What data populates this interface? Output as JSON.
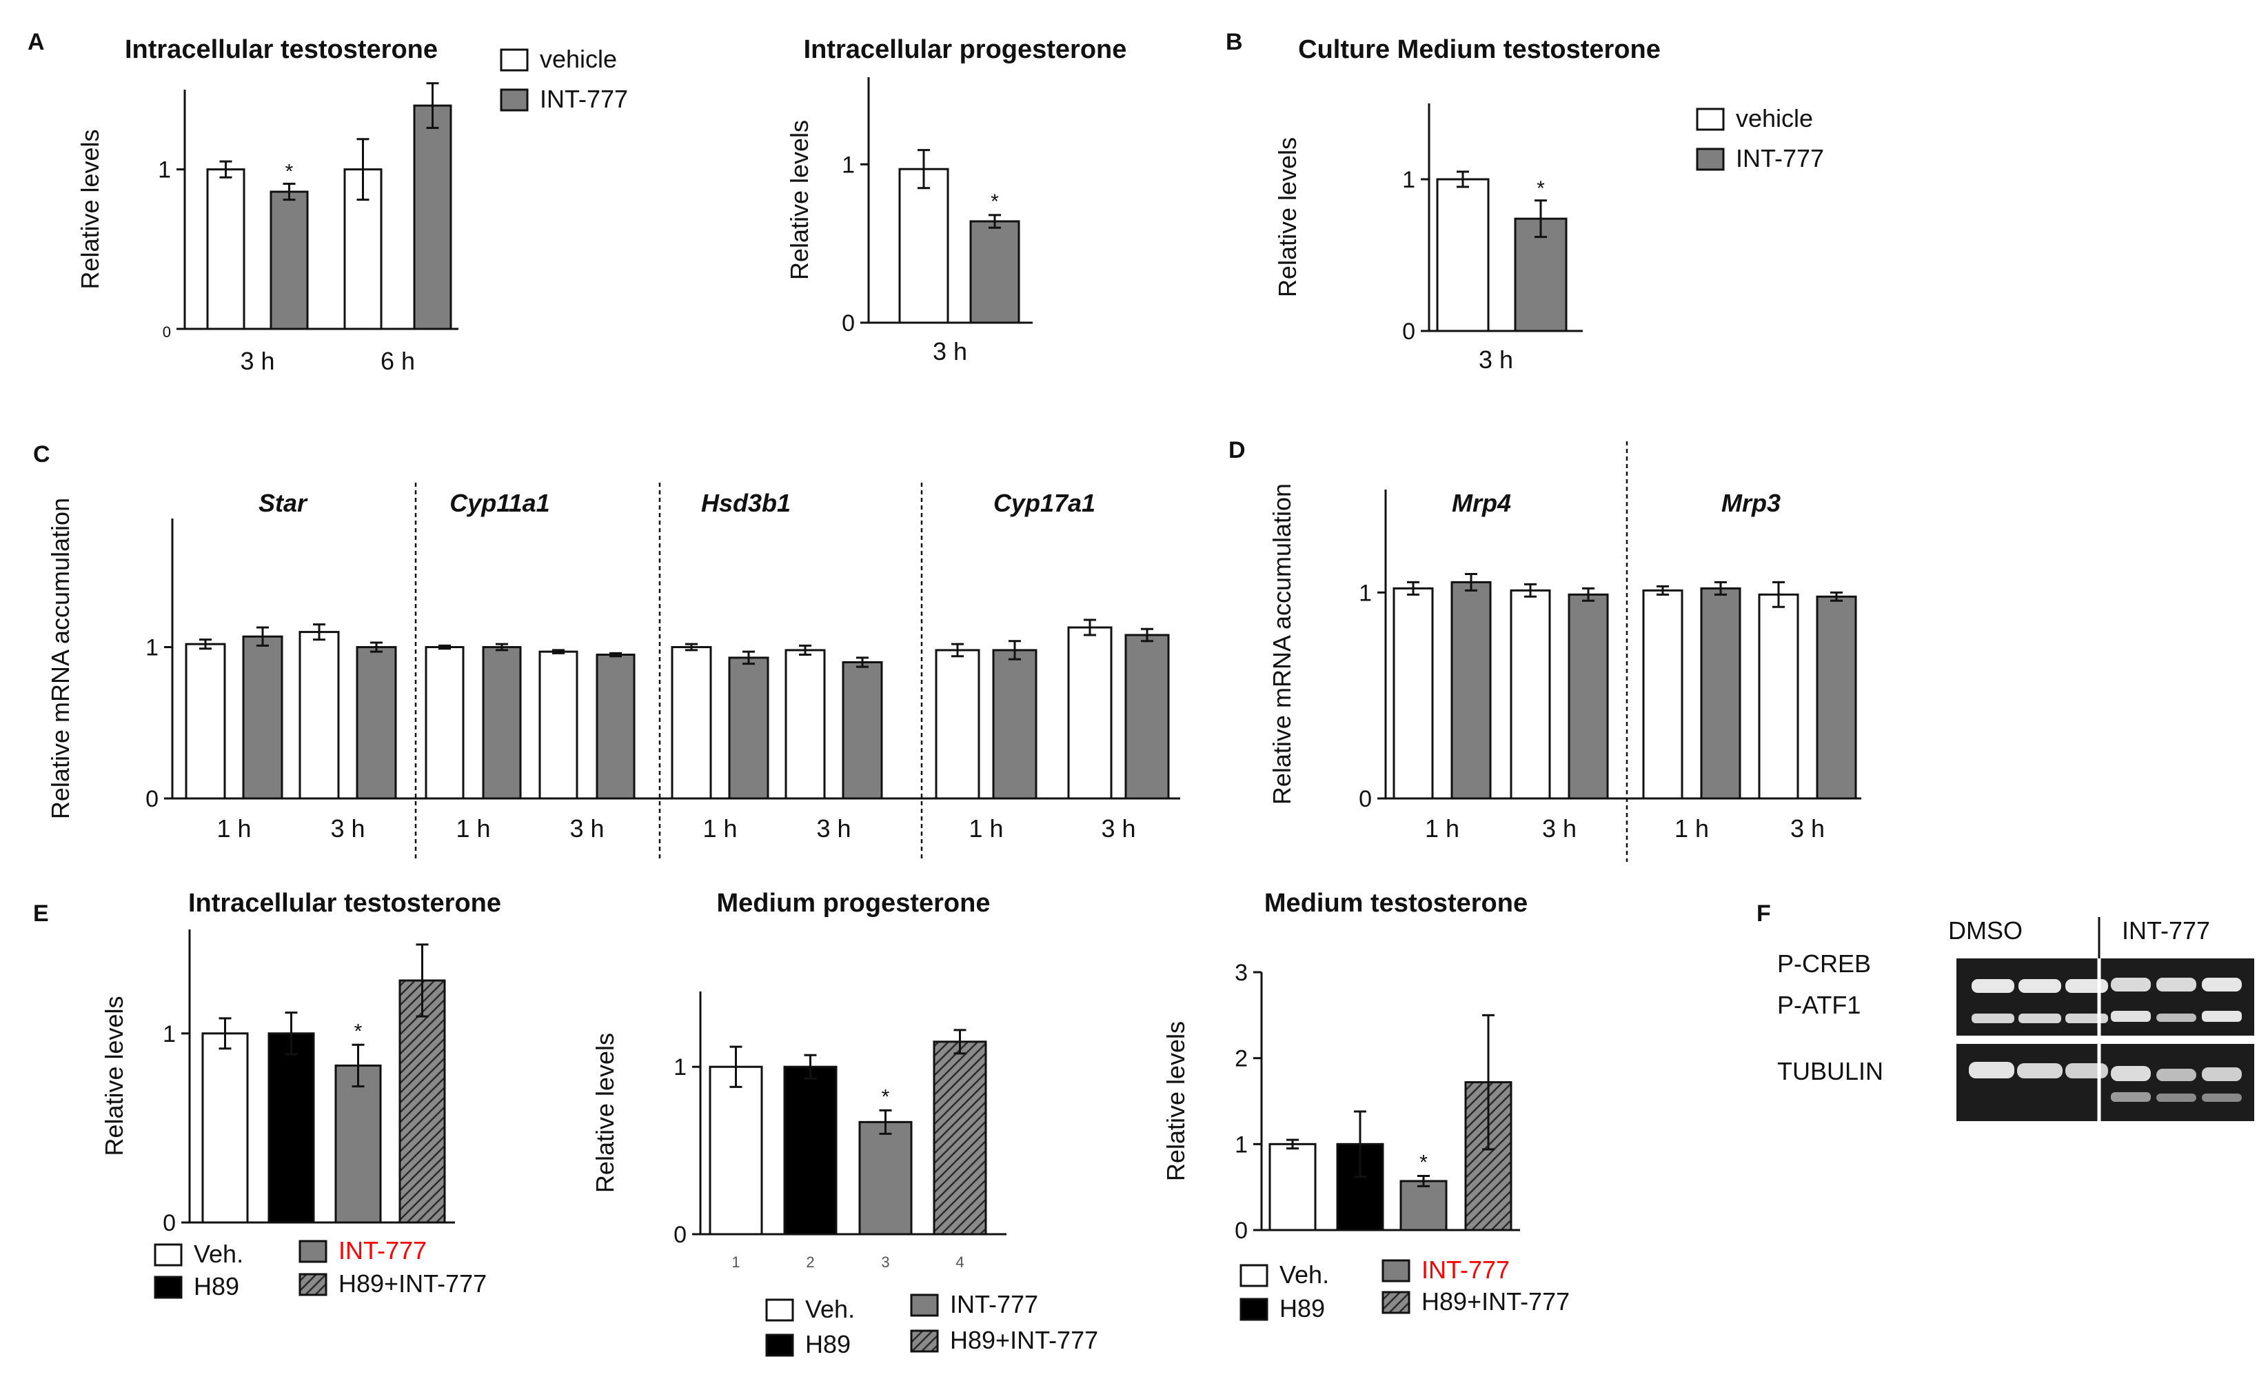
{
  "colors": {
    "vehicle": "#ffffff",
    "int777": "#7f7f7f",
    "h89": "#000000",
    "h89_int777": "#555555",
    "axis": "#111111",
    "red_label": "#ff0000"
  },
  "chart_data": [
    {
      "id": "A1",
      "panel": "A",
      "type": "bar",
      "title": "Intracellular testosterone",
      "ylabel": "Relative levels",
      "ylim": [
        0,
        1.5
      ],
      "yticks": [
        "0",
        "1"
      ],
      "groups": [
        "3 h",
        "6 h"
      ],
      "series": [
        {
          "name": "vehicle",
          "values": [
            1.0,
            1.0
          ],
          "errors": [
            0.05,
            0.19
          ]
        },
        {
          "name": "INT-777",
          "values": [
            0.86,
            1.4
          ],
          "errors": [
            0.05,
            0.14
          ]
        }
      ],
      "significance": [
        "*",
        ""
      ],
      "legend": [
        "vehicle",
        "INT-777"
      ]
    },
    {
      "id": "A2",
      "panel": "A",
      "type": "bar",
      "title": "Intracellular progesterone",
      "ylabel": "Relative levels",
      "ylim": [
        0,
        1.55
      ],
      "yticks": [
        "0",
        "1"
      ],
      "groups": [
        "3 h"
      ],
      "series": [
        {
          "name": "vehicle",
          "values": [
            0.97
          ],
          "errors": [
            0.12
          ]
        },
        {
          "name": "INT-777",
          "values": [
            0.64
          ],
          "errors": [
            0.04
          ]
        }
      ],
      "significance": [
        "*"
      ]
    },
    {
      "id": "B",
      "panel": "B",
      "type": "bar",
      "title": "Culture Medium testosterone",
      "ylabel": "Relative levels",
      "ylim": [
        0,
        1.5
      ],
      "yticks": [
        "0",
        "1"
      ],
      "groups": [
        "3 h"
      ],
      "series": [
        {
          "name": "vehicle",
          "values": [
            1.0
          ],
          "errors": [
            0.05
          ]
        },
        {
          "name": "INT-777",
          "values": [
            0.74
          ],
          "errors": [
            0.12
          ]
        }
      ],
      "significance": [
        "*"
      ],
      "legend": [
        "vehicle",
        "INT-777"
      ]
    },
    {
      "id": "C",
      "panel": "C",
      "type": "bar",
      "ylabel": "Relative mRNA accumulation",
      "ylim": [
        0,
        1.85
      ],
      "yticks": [
        "0",
        "1"
      ],
      "genes": [
        "Star",
        "Cyp11a1",
        "Hsd3b1",
        "Cyp17a1"
      ],
      "groups": [
        "1 h",
        "3 h"
      ],
      "values": [
        [
          [
            1.02,
            1.07
          ],
          [
            1.1,
            1.0
          ]
        ],
        [
          [
            1.0,
            1.0
          ],
          [
            0.97,
            0.95
          ]
        ],
        [
          [
            1.0,
            0.93
          ],
          [
            0.98,
            0.9
          ]
        ],
        [
          [
            0.98,
            0.98
          ],
          [
            1.13,
            1.08
          ]
        ]
      ],
      "errors": [
        [
          [
            0.03,
            0.06
          ],
          [
            0.05,
            0.03
          ]
        ],
        [
          [
            0.01,
            0.02
          ],
          [
            0.01,
            0.01
          ]
        ],
        [
          [
            0.02,
            0.04
          ],
          [
            0.03,
            0.03
          ]
        ],
        [
          [
            0.04,
            0.06
          ],
          [
            0.05,
            0.04
          ]
        ]
      ],
      "series_order": [
        "vehicle",
        "INT-777"
      ]
    },
    {
      "id": "D",
      "panel": "D",
      "type": "bar",
      "ylabel": "Relative mRNA accumulation",
      "ylim": [
        0,
        1.5
      ],
      "yticks": [
        "0",
        "1"
      ],
      "genes": [
        "Mrp4",
        "Mrp3"
      ],
      "groups": [
        "1 h",
        "3 h"
      ],
      "values": [
        [
          [
            1.02,
            1.05
          ],
          [
            1.01,
            0.99
          ]
        ],
        [
          [
            1.01,
            1.02
          ],
          [
            0.99,
            0.98
          ]
        ]
      ],
      "errors": [
        [
          [
            0.03,
            0.04
          ],
          [
            0.03,
            0.03
          ]
        ],
        [
          [
            0.02,
            0.03
          ],
          [
            0.06,
            0.02
          ]
        ]
      ],
      "series_order": [
        "vehicle",
        "INT-777"
      ]
    },
    {
      "id": "E1",
      "panel": "E",
      "type": "bar",
      "title": "Intracellular testosterone",
      "ylabel": "Relative levels",
      "ylim": [
        0,
        1.55
      ],
      "yticks": [
        "0",
        "1"
      ],
      "categories": [
        "Veh.",
        "H89",
        "INT-777",
        "H89+INT-777"
      ],
      "values": [
        1.0,
        1.0,
        0.83,
        1.28
      ],
      "errors": [
        0.08,
        0.11,
        0.11,
        0.19
      ],
      "significance": [
        "",
        "",
        "*",
        ""
      ],
      "legend": [
        "Veh.",
        "H89",
        "INT-777",
        "H89+INT-777"
      ]
    },
    {
      "id": "E2",
      "panel": "E",
      "type": "bar",
      "title": "Medium progesterone",
      "ylabel": "Relative levels",
      "ylim": [
        0,
        1.45
      ],
      "yticks": [
        "0",
        "1"
      ],
      "categories": [
        "1",
        "2",
        "3",
        "4"
      ],
      "values": [
        1.0,
        1.0,
        0.67,
        1.15
      ],
      "errors": [
        0.12,
        0.07,
        0.07,
        0.07
      ],
      "significance": [
        "",
        "",
        "*",
        ""
      ],
      "legend": [
        "Veh.",
        "H89",
        "INT-777",
        "H89+INT-777"
      ]
    },
    {
      "id": "E3",
      "panel": "E",
      "type": "bar",
      "title": "Medium testosterone",
      "ylabel": "Relative levels",
      "ylim": [
        0,
        3
      ],
      "yticks": [
        "0",
        "1",
        "2",
        "3"
      ],
      "categories": [
        "Veh.",
        "H89",
        "INT-777",
        "H89+INT-777"
      ],
      "values": [
        1.0,
        1.0,
        0.57,
        1.72
      ],
      "errors": [
        0.05,
        0.38,
        0.06,
        0.78
      ],
      "significance": [
        "",
        "",
        "*",
        ""
      ],
      "legend": [
        "Veh.",
        "H89",
        "INT-777",
        "H89+INT-777"
      ]
    }
  ],
  "blot": {
    "panel": "F",
    "header": [
      "DMSO",
      "INT-777"
    ],
    "rows": [
      "P-CREB",
      "P-ATF1",
      "TUBULIN"
    ]
  },
  "panel_letters": [
    "A",
    "B",
    "C",
    "D",
    "E",
    "F"
  ]
}
